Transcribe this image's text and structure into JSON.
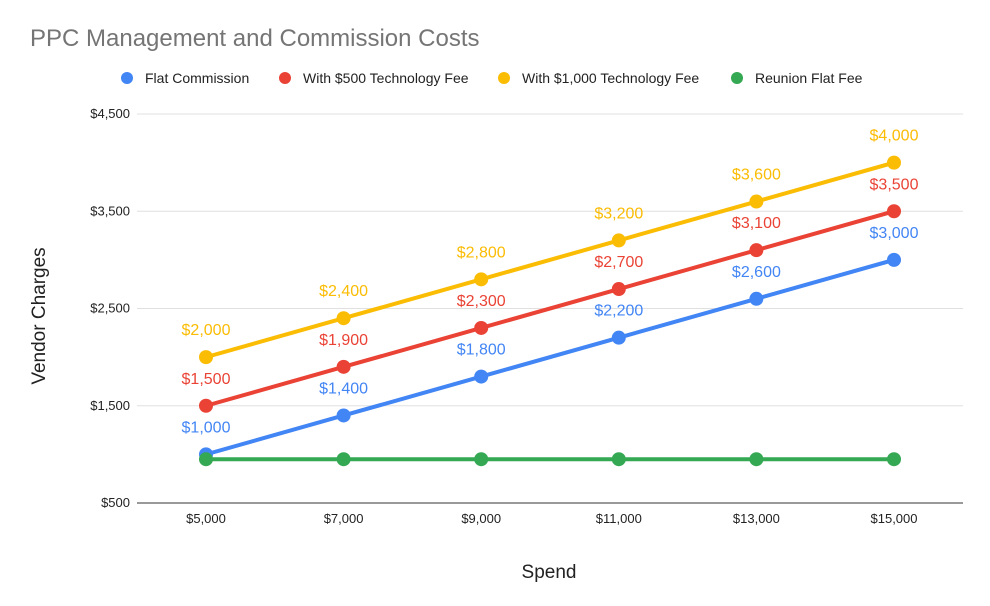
{
  "chart_data": {
    "type": "line",
    "title": "PPC Management and Commission Costs",
    "xlabel": "Spend",
    "ylabel": "Vendor Charges",
    "categories": [
      "$5,000",
      "$7,000",
      "$9,000",
      "$11,000",
      "$13,000",
      "$15,000"
    ],
    "x": [
      5000,
      7000,
      9000,
      11000,
      13000,
      15000
    ],
    "ylim": [
      500,
      4500
    ],
    "yticks": [
      500,
      1500,
      2500,
      3500,
      4500
    ],
    "ytick_labels": [
      "$500",
      "$1,500",
      "$2,500",
      "$3,500",
      "$4,500"
    ],
    "grid": true,
    "legend_position": "top",
    "series": [
      {
        "name": "Flat Commission",
        "color": "#4285f4",
        "values": [
          1000,
          1400,
          1800,
          2200,
          2600,
          3000
        ],
        "labels": [
          "$1,000",
          "$1,400",
          "$1,800",
          "$2,200",
          "$2,600",
          "$3,000"
        ]
      },
      {
        "name": "With $500 Technology Fee",
        "color": "#ea4335",
        "values": [
          1500,
          1900,
          2300,
          2700,
          3100,
          3500
        ],
        "labels": [
          "$1,500",
          "$1,900",
          "$2,300",
          "$2,700",
          "$3,100",
          "$3,500"
        ]
      },
      {
        "name": "With $1,000 Technology Fee",
        "color": "#fbbc04",
        "values": [
          2000,
          2400,
          2800,
          3200,
          3600,
          4000
        ],
        "labels": [
          "$2,000",
          "$2,400",
          "$2,800",
          "$3,200",
          "$3,600",
          "$4,000"
        ]
      },
      {
        "name": "Reunion Flat Fee",
        "color": "#34a853",
        "values": [
          950,
          950,
          950,
          950,
          950,
          950
        ],
        "labels": []
      }
    ]
  }
}
